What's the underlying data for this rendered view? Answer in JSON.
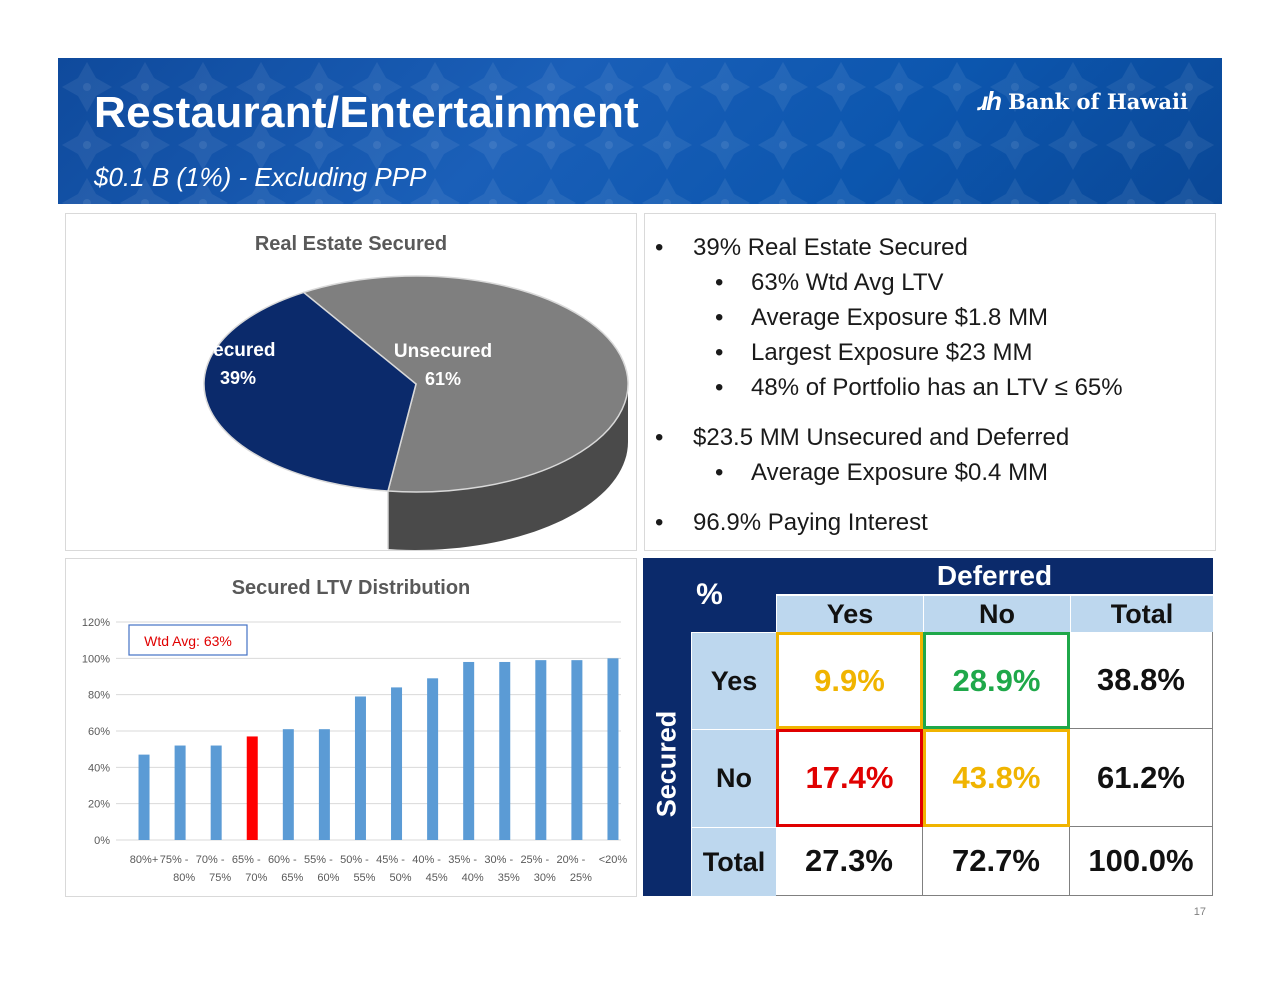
{
  "header": {
    "title": "Restaurant/Entertainment",
    "subtitle": "$0.1 B (1%) - Excluding PPP",
    "logo_mark": "ɹh",
    "logo_text": "Bank of Hawaii"
  },
  "bullets": {
    "items": [
      {
        "level": 1,
        "text": "39% Real Estate Secured"
      },
      {
        "level": 2,
        "text": "63% Wtd Avg LTV"
      },
      {
        "level": 2,
        "text": "Average Exposure $1.8 MM"
      },
      {
        "level": 2,
        "text": "Largest Exposure $23 MM"
      },
      {
        "level": 2,
        "text": "48% of Portfolio has an LTV ≤ 65%"
      },
      {
        "level": 1,
        "text": "$23.5 MM Unsecured and Deferred"
      },
      {
        "level": 2,
        "text": "Average Exposure $0.4 MM"
      },
      {
        "level": 1,
        "text": "96.9% Paying Interest"
      }
    ]
  },
  "colors": {
    "navy": "#0b2a6b",
    "gray": "#7f7f7f",
    "bar_blue": "#5b9bd5",
    "bar_highlight": "#ff0000",
    "yellow_border": "#f0b400",
    "green_border": "#1fa84a",
    "red_border": "#e00000",
    "light_blue": "#bdd7ee"
  },
  "chart_data": [
    {
      "type": "pie",
      "title": "Real Estate Secured",
      "slices": [
        {
          "label": "Secured",
          "value": 39,
          "value_label": "39%",
          "color": "#0b2a6b"
        },
        {
          "label": "Unsecured",
          "value": 61,
          "value_label": "61%",
          "color": "#7f7f7f"
        }
      ]
    },
    {
      "type": "bar",
      "title": "Secured LTV Distribution",
      "annotation": "Wtd Avg: 63%",
      "categories": [
        "80%+",
        "75% - 80%",
        "70% - 75%",
        "65% - 70%",
        "60% - 65%",
        "55% - 60%",
        "50% - 55%",
        "45% - 50%",
        "40% - 45%",
        "35% - 40%",
        "30% - 35%",
        "25% - 30%",
        "20% - 25%",
        "<20%"
      ],
      "category_lines": [
        [
          "80%+",
          ""
        ],
        [
          "75% -",
          "80%"
        ],
        [
          "70% -",
          "75%"
        ],
        [
          "65% -",
          "70%"
        ],
        [
          "60% -",
          "65%"
        ],
        [
          "55% -",
          "60%"
        ],
        [
          "50% -",
          "55%"
        ],
        [
          "45% -",
          "50%"
        ],
        [
          "40% -",
          "45%"
        ],
        [
          "35% -",
          "40%"
        ],
        [
          "30% -",
          "35%"
        ],
        [
          "25% -",
          "30%"
        ],
        [
          "20% -",
          "25%"
        ],
        [
          "<20%",
          ""
        ]
      ],
      "values": [
        0.47,
        0.52,
        0.52,
        0.57,
        0.61,
        0.61,
        0.79,
        0.84,
        0.89,
        0.98,
        0.98,
        0.99,
        0.99,
        1.0
      ],
      "highlight_index": 3,
      "yticks": [
        "0%",
        "20%",
        "40%",
        "60%",
        "80%",
        "100%",
        "120%"
      ],
      "ylim": [
        0,
        1.2
      ],
      "grid": true
    },
    {
      "type": "table",
      "corner": "%",
      "col_group": "Deferred",
      "row_group": "Secured",
      "col_headers": [
        "Yes",
        "No",
        "Total"
      ],
      "rows": [
        {
          "label": "Yes",
          "cells": [
            "9.9%",
            "28.9%",
            "38.8%"
          ]
        },
        {
          "label": "No",
          "cells": [
            "17.4%",
            "43.8%",
            "61.2%"
          ]
        },
        {
          "label": "Total",
          "cells": [
            "27.3%",
            "72.7%",
            "100.0%"
          ]
        }
      ]
    }
  ],
  "footer": {
    "page_number": "17"
  }
}
